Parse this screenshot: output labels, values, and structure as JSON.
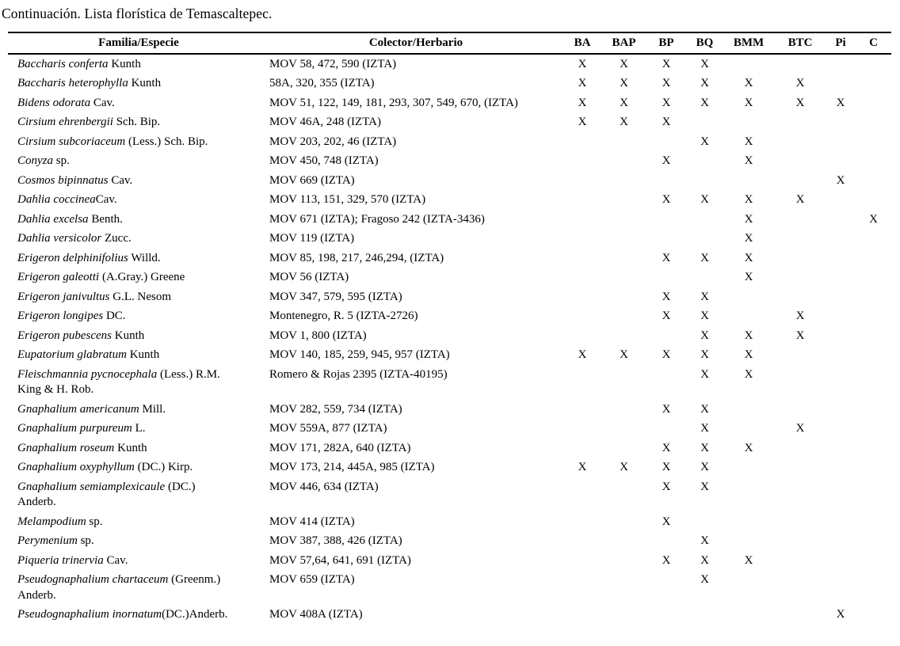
{
  "page": {
    "title": "Continuación. Lista florística de Temascaltepec."
  },
  "table": {
    "headers": [
      "Familia/Especie",
      "Colector/Herbario",
      "BA",
      "BAP",
      "BP",
      "BQ",
      "BMM",
      "BTC",
      "Pi",
      "C"
    ],
    "rows": [
      {
        "species": "Baccharis conferta",
        "authority": " Kunth",
        "collector": "MOV 58, 472, 590 (IZTA)",
        "marks": [
          "X",
          "X",
          "X",
          "X",
          "",
          "",
          "",
          ""
        ]
      },
      {
        "species": "Baccharis heterophylla",
        "authority": " Kunth",
        "collector": "58A, 320, 355 (IZTA)",
        "marks": [
          "X",
          "X",
          "X",
          "X",
          "X",
          "X",
          "",
          ""
        ]
      },
      {
        "species": "Bidens odorata",
        "authority": " Cav.",
        "collector": "MOV 51, 122, 149, 181, 293, 307, 549, 670, (IZTA)",
        "marks": [
          "X",
          "X",
          "X",
          "X",
          "X",
          "X",
          "X",
          ""
        ]
      },
      {
        "species": "Cirsium ehrenbergii",
        "authority": " Sch. Bip.",
        "collector": "MOV 46A, 248 (IZTA)",
        "marks": [
          "X",
          "X",
          "X",
          "",
          "",
          "",
          "",
          ""
        ]
      },
      {
        "species": "Cirsium subcoriaceum",
        "authority": " (Less.) Sch. Bip.",
        "collector": "MOV 203, 202, 46 (IZTA)",
        "marks": [
          "",
          "",
          "",
          "X",
          "X",
          "",
          "",
          ""
        ]
      },
      {
        "species": "Conyza",
        "authority": " sp.",
        "collector": "MOV 450, 748 (IZTA)",
        "marks": [
          "",
          "",
          "X",
          "",
          "X",
          "",
          "",
          ""
        ]
      },
      {
        "species": "Cosmos bipinnatus",
        "authority": " Cav.",
        "collector": "MOV 669 (IZTA)",
        "marks": [
          "",
          "",
          "",
          "",
          "",
          "",
          "X",
          ""
        ]
      },
      {
        "species": "Dahlia coccinea",
        "authority": "Cav.",
        "collector": "MOV 113, 151, 329, 570 (IZTA)",
        "marks": [
          "",
          "",
          "X",
          "X",
          "X",
          "X",
          "",
          ""
        ]
      },
      {
        "species": "Dahlia excelsa",
        "authority": " Benth.",
        "collector": "MOV 671 (IZTA); Fragoso 242 (IZTA-3436)",
        "marks": [
          "",
          "",
          "",
          "",
          "X",
          "",
          "",
          "X"
        ]
      },
      {
        "species": "Dahlia versicolor",
        "authority": " Zucc.",
        "collector": "MOV 119 (IZTA)",
        "marks": [
          "",
          "",
          "",
          "",
          "X",
          "",
          "",
          ""
        ]
      },
      {
        "species": "Erigeron delphinifolius",
        "authority": " Willd.",
        "collector": "MOV 85, 198, 217, 246,294, (IZTA)",
        "marks": [
          "",
          "",
          "X",
          "X",
          "X",
          "",
          "",
          ""
        ]
      },
      {
        "species": "Erigeron galeotti",
        "authority": " (A.Gray.) Greene",
        "collector": "MOV 56 (IZTA)",
        "marks": [
          "",
          "",
          "",
          "",
          "X",
          "",
          "",
          ""
        ]
      },
      {
        "species": "Erigeron janivultus",
        "authority": " G.L. Nesom",
        "collector": "MOV 347, 579, 595 (IZTA)",
        "marks": [
          "",
          "",
          "X",
          "X",
          "",
          "",
          "",
          ""
        ]
      },
      {
        "species": "Erigeron longipes",
        "authority": " DC.",
        "collector": "Montenegro, R. 5 (IZTA-2726)",
        "marks": [
          "",
          "",
          "X",
          "X",
          "",
          "X",
          "",
          ""
        ]
      },
      {
        "species": "Erigeron pubescens",
        "authority": " Kunth",
        "collector": "MOV 1, 800 (IZTA)",
        "marks": [
          "",
          "",
          "",
          "X",
          "X",
          "X",
          "",
          ""
        ]
      },
      {
        "species": "Eupatorium glabratum",
        "authority": " Kunth",
        "collector": "MOV 140, 185, 259, 945, 957 (IZTA)",
        "marks": [
          "X",
          "X",
          "X",
          "X",
          "X",
          "",
          "",
          ""
        ]
      },
      {
        "species": "Fleischmannia pycnocephala",
        "authority": " (Less.) R.M.",
        "authority2": "King & H. Rob.",
        "collector": "Romero & Rojas 2395 (IZTA-40195)",
        "marks": [
          "",
          "",
          "",
          "X",
          "X",
          "",
          "",
          ""
        ]
      },
      {
        "species": "Gnaphalium americanum",
        "authority": " Mill.",
        "collector": "MOV 282, 559, 734 (IZTA)",
        "marks": [
          "",
          "",
          "X",
          "X",
          "",
          "",
          "",
          ""
        ]
      },
      {
        "species": "Gnaphalium purpureum",
        "authority": " L.",
        "collector": "MOV 559A, 877 (IZTA)",
        "marks": [
          "",
          "",
          "",
          "X",
          "",
          "X",
          "",
          ""
        ]
      },
      {
        "species": "Gnaphalium roseum",
        "authority": " Kunth",
        "collector": "MOV 171, 282A, 640 (IZTA)",
        "marks": [
          "",
          "",
          "X",
          "X",
          "X",
          "",
          "",
          ""
        ]
      },
      {
        "species": "Gnaphalium oxyphyllum",
        "authority": " (DC.) Kirp.",
        "collector": "MOV 173, 214, 445A, 985 (IZTA)",
        "marks": [
          "X",
          "X",
          "X",
          "X",
          "",
          "",
          "",
          ""
        ]
      },
      {
        "species": "Gnaphalium semiamplexicaule",
        "authority": " (DC.)",
        "authority2": "Anderb.",
        "collector": "MOV 446, 634 (IZTA)",
        "marks": [
          "",
          "",
          "X",
          "X",
          "",
          "",
          "",
          ""
        ]
      },
      {
        "species": "Melampodium",
        "authority": " sp.",
        "collector": "MOV 414 (IZTA)",
        "marks": [
          "",
          "",
          "X",
          "",
          "",
          "",
          "",
          ""
        ]
      },
      {
        "species": "Perymenium",
        "authority": " sp.",
        "collector": "MOV 387, 388, 426 (IZTA)",
        "marks": [
          "",
          "",
          "",
          "X",
          "",
          "",
          "",
          ""
        ]
      },
      {
        "species": "Piqueria trinervia",
        "authority": " Cav.",
        "collector": "MOV 57,64, 641, 691 (IZTA)",
        "marks": [
          "",
          "",
          "X",
          "X",
          "X",
          "",
          "",
          ""
        ]
      },
      {
        "species": "Pseudognaphalium chartaceum",
        "authority": " (Greenm.)",
        "authority2": "Anderb.",
        "collector": "MOV 659 (IZTA)",
        "marks": [
          "",
          "",
          "",
          "X",
          "",
          "",
          "",
          ""
        ]
      },
      {
        "species": "Pseudognaphalium inornatum",
        "authority": "(DC.)Anderb.",
        "collector": "MOV 408A (IZTA)",
        "marks": [
          "",
          "",
          "",
          "",
          "",
          "",
          "X",
          ""
        ]
      }
    ]
  }
}
